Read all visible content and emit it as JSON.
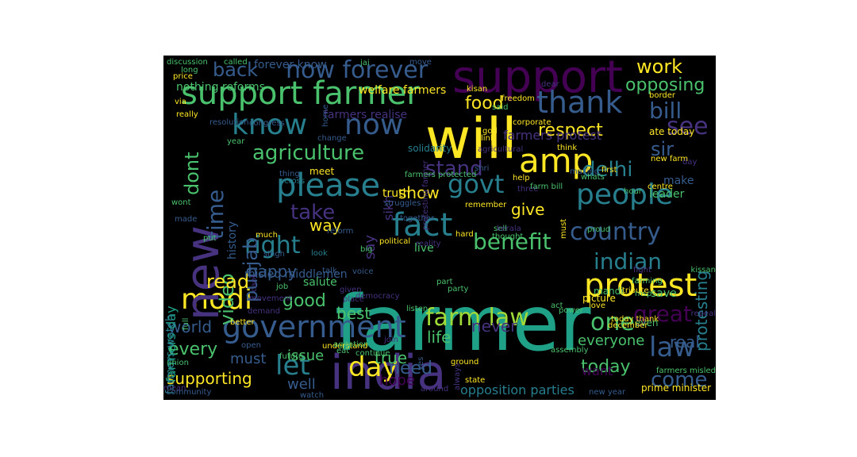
{
  "background": "#000000",
  "palette": [
    "#440154",
    "#46327e",
    "#365c8d",
    "#277f8e",
    "#1fa187",
    "#4ac16d",
    "#a0da39",
    "#fde725"
  ],
  "words": [
    {
      "text": "farmer",
      "color": "#1fa187"
    },
    {
      "text": "india",
      "color": "#46327e"
    },
    {
      "text": "support",
      "color": "#440154"
    },
    {
      "text": "will",
      "color": "#fde725"
    },
    {
      "text": "support farmer",
      "color": "#4ac16d"
    },
    {
      "text": "modi",
      "color": "#fde725"
    },
    {
      "text": "protest",
      "color": "#fde725"
    },
    {
      "text": "government",
      "color": "#365c8d"
    },
    {
      "text": "amp",
      "color": "#fde725"
    },
    {
      "text": "people",
      "color": "#277f8e"
    },
    {
      "text": "fact",
      "color": "#277f8e"
    },
    {
      "text": "know",
      "color": "#277f8e"
    },
    {
      "text": "now",
      "color": "#365c8d"
    },
    {
      "text": "please",
      "color": "#277f8e"
    },
    {
      "text": "new",
      "color": "#46327e"
    },
    {
      "text": "thank",
      "color": "#365c8d"
    },
    {
      "text": "day",
      "color": "#fde725"
    },
    {
      "text": "farm law",
      "color": "#a0da39"
    },
    {
      "text": "now forever",
      "color": "#365c8d"
    },
    {
      "text": "country",
      "color": "#365c8d"
    },
    {
      "text": "govt",
      "color": "#277f8e"
    },
    {
      "text": "let",
      "color": "#277f8e"
    },
    {
      "text": "one",
      "color": "#4ac16d"
    },
    {
      "text": "indian",
      "color": "#277f8e"
    },
    {
      "text": "benefit",
      "color": "#4ac16d"
    },
    {
      "text": "right",
      "color": "#277f8e"
    },
    {
      "text": "bill",
      "color": "#365c8d"
    },
    {
      "text": "agriculture",
      "color": "#4ac16d"
    },
    {
      "text": "delhi",
      "color": "#277f8e"
    },
    {
      "text": "great",
      "color": "#440154"
    },
    {
      "text": "law",
      "color": "#365c8d"
    },
    {
      "text": "time",
      "color": "#365c8d"
    },
    {
      "text": "dont",
      "color": "#4ac16d"
    },
    {
      "text": "work",
      "color": "#fde725"
    },
    {
      "text": "opposing",
      "color": "#4ac16d"
    },
    {
      "text": "back",
      "color": "#365c8d"
    },
    {
      "text": "food",
      "color": "#fde725"
    },
    {
      "text": "see",
      "color": "#46327e"
    },
    {
      "text": "sir",
      "color": "#365c8d"
    },
    {
      "text": "respect",
      "color": "#fde725"
    },
    {
      "text": "take",
      "color": "#46327e"
    },
    {
      "text": "stand",
      "color": "#46327e"
    },
    {
      "text": "punjab",
      "color": "#365c8d"
    },
    {
      "text": "video",
      "color": "#4ac16d"
    },
    {
      "text": "read",
      "color": "#fde725"
    },
    {
      "text": "good",
      "color": "#4ac16d"
    },
    {
      "text": "happy",
      "color": "#365c8d"
    },
    {
      "text": "protesting",
      "color": "#277f8e"
    },
    {
      "text": "show",
      "color": "#fde725"
    },
    {
      "text": "give",
      "color": "#fde725"
    },
    {
      "text": "way",
      "color": "#fde725"
    },
    {
      "text": "world",
      "color": "#365c8d"
    },
    {
      "text": "every",
      "color": "#4ac16d"
    },
    {
      "text": "supporting",
      "color": "#fde725"
    },
    {
      "text": "need",
      "color": "#365c8d"
    },
    {
      "text": "come",
      "color": "#365c8d"
    },
    {
      "text": "today",
      "color": "#4ac16d"
    },
    {
      "text": "real",
      "color": "#365c8d"
    },
    {
      "text": "life",
      "color": "#4ac16d"
    },
    {
      "text": "best",
      "color": "#4ac16d"
    },
    {
      "text": "true",
      "color": "#4ac16d"
    },
    {
      "text": "issue",
      "color": "#4ac16d"
    },
    {
      "text": "must",
      "color": "#365c8d"
    },
    {
      "text": "hope",
      "color": "#440154"
    },
    {
      "text": "well",
      "color": "#365c8d"
    },
    {
      "text": "want",
      "color": "#440154"
    },
    {
      "text": "everyone",
      "color": "#4ac16d"
    },
    {
      "text": "never",
      "color": "#46327e"
    },
    {
      "text": "opposition parties",
      "color": "#277f8e"
    },
    {
      "text": "farmers day",
      "color": "#1fa187"
    },
    {
      "text": "farmers watch",
      "color": "#277f8e"
    },
    {
      "text": "sikh",
      "color": "#46327e"
    },
    {
      "text": "say",
      "color": "#46327e"
    },
    {
      "text": "history",
      "color": "#365c8d"
    },
    {
      "text": "nothing reforms",
      "color": "#4ac16d"
    },
    {
      "text": "welfare farmers",
      "color": "#fde725"
    },
    {
      "text": "forever know",
      "color": "#365c8d"
    },
    {
      "text": "farmers realise",
      "color": "#46327e"
    },
    {
      "text": "farmers protest",
      "color": "#46327e"
    },
    {
      "text": "misled middlemen",
      "color": "#365c8d"
    },
    {
      "text": "salute",
      "color": "#4ac16d"
    },
    {
      "text": "live",
      "color": "#4ac16d"
    },
    {
      "text": "truth",
      "color": "#fde725"
    },
    {
      "text": "save",
      "color": "#4ac16d"
    },
    {
      "text": "leader",
      "color": "#4ac16d"
    },
    {
      "text": "make",
      "color": "#365c8d"
    },
    {
      "text": "even",
      "color": "#4ac16d"
    },
    {
      "text": "prime minister",
      "color": "#fde725"
    },
    {
      "text": "farmers misled",
      "color": "#4ac16d"
    },
    {
      "text": "mandi",
      "color": "#4ac16d"
    },
    {
      "text": "picture",
      "color": "#fde725"
    },
    {
      "text": "ate today",
      "color": "#fde725"
    },
    {
      "text": "solidarity",
      "color": "#277f8e"
    },
    {
      "text": "congress",
      "color": "#365c8d"
    },
    {
      "text": "resolution",
      "color": "#365c8d"
    },
    {
      "text": "change",
      "color": "#365c8d"
    },
    {
      "text": "thing",
      "color": "#365c8d"
    },
    {
      "text": "across",
      "color": "#277f8e"
    },
    {
      "text": "meet",
      "color": "#fde725"
    },
    {
      "text": "farmers protected",
      "color": "#4ac16d"
    },
    {
      "text": "help",
      "color": "#fde725"
    },
    {
      "text": "three",
      "color": "#46327e"
    },
    {
      "text": "farm bill",
      "color": "#4ac16d"
    },
    {
      "text": "struggles",
      "color": "#365c8d"
    },
    {
      "text": "together",
      "color": "#365c8d"
    },
    {
      "text": "remember",
      "color": "#fde725"
    },
    {
      "text": "hard",
      "color": "#fde725"
    },
    {
      "text": "political",
      "color": "#fde725"
    },
    {
      "text": "reality",
      "color": "#46327e"
    },
    {
      "text": "big",
      "color": "#4ac16d"
    },
    {
      "text": "singh",
      "color": "#365c8d"
    },
    {
      "text": "much",
      "color": "#fde725"
    },
    {
      "text": "reform",
      "color": "#365c8d"
    },
    {
      "text": "look",
      "color": "#277f8e"
    },
    {
      "text": "talk",
      "color": "#365c8d"
    },
    {
      "text": "voice",
      "color": "#365c8d"
    },
    {
      "text": "job",
      "color": "#4ac16d"
    },
    {
      "text": "given",
      "color": "#46327e"
    },
    {
      "text": "place",
      "color": "#46327e"
    },
    {
      "text": "part",
      "color": "#4ac16d"
    },
    {
      "text": "party",
      "color": "#4ac16d"
    },
    {
      "text": "movement",
      "color": "#46327e"
    },
    {
      "text": "demand",
      "color": "#46327e"
    },
    {
      "text": "democracy",
      "color": "#46327e"
    },
    {
      "text": "listen",
      "color": "#4ac16d"
    },
    {
      "text": "act",
      "color": "#4ac16d"
    },
    {
      "text": "love",
      "color": "#fde725"
    },
    {
      "text": "power",
      "color": "#4ac16d"
    },
    {
      "text": "better",
      "color": "#fde725"
    },
    {
      "text": "open",
      "color": "#365c8d"
    },
    {
      "text": "understand",
      "color": "#fde725"
    },
    {
      "text": "agitation",
      "color": "#4ac16d"
    },
    {
      "text": "eat",
      "color": "#4ac16d"
    },
    {
      "text": "continue",
      "color": "#4ac16d"
    },
    {
      "text": "future",
      "color": "#4ac16d"
    },
    {
      "text": "join",
      "color": "#46327e"
    },
    {
      "text": "ground",
      "color": "#fde725"
    },
    {
      "text": "state",
      "color": "#fde725"
    },
    {
      "text": "around",
      "color": "#46327e"
    },
    {
      "text": "mean",
      "color": "#46327e"
    },
    {
      "text": "watch",
      "color": "#365c8d"
    },
    {
      "text": "community",
      "color": "#365c8d"
    },
    {
      "text": "union",
      "color": "#4ac16d"
    },
    {
      "text": "new year",
      "color": "#365c8d"
    },
    {
      "text": "assembly",
      "color": "#4ac16d"
    },
    {
      "text": "december",
      "color": "#fde725"
    },
    {
      "text": "today thank",
      "color": "#fde725"
    },
    {
      "text": "repeal",
      "color": "#46327e"
    },
    {
      "text": "kissan",
      "color": "#4ac16d"
    },
    {
      "text": "fight",
      "color": "#46327e"
    },
    {
      "text": "msp",
      "color": "#4ac16d"
    },
    {
      "text": "farming",
      "color": "#4ac16d"
    },
    {
      "text": "tribute",
      "color": "#fde725"
    },
    {
      "text": "proud",
      "color": "#4ac16d"
    },
    {
      "text": "first",
      "color": "#fde725"
    },
    {
      "text": "centre",
      "color": "#fde725"
    },
    {
      "text": "new farm",
      "color": "#fde725"
    },
    {
      "text": "making",
      "color": "#365c8d"
    },
    {
      "text": "whats",
      "color": "#4ac16d"
    },
    {
      "text": "hour",
      "color": "#4ac16d"
    },
    {
      "text": "think",
      "color": "#fde725"
    },
    {
      "text": "dear",
      "color": "#46327e"
    },
    {
      "text": "day",
      "color": "#46327e"
    },
    {
      "text": "border",
      "color": "#fde725"
    },
    {
      "text": "freedom",
      "color": "#fde725"
    },
    {
      "text": "said",
      "color": "#4ac16d"
    },
    {
      "text": "corporate",
      "color": "#fde725"
    },
    {
      "text": "kisan",
      "color": "#fde725"
    },
    {
      "text": "god",
      "color": "#fde725"
    },
    {
      "text": "link",
      "color": "#fde725"
    },
    {
      "text": "agricultural",
      "color": "#46327e"
    },
    {
      "text": "shri",
      "color": "#365c8d"
    },
    {
      "text": "jai",
      "color": "#4ac16d"
    },
    {
      "text": "move",
      "color": "#365c8d"
    },
    {
      "text": "called",
      "color": "#4ac16d"
    },
    {
      "text": "discussion",
      "color": "#4ac16d"
    },
    {
      "text": "long",
      "color": "#4ac16d"
    },
    {
      "text": "price",
      "color": "#fde725"
    },
    {
      "text": "via",
      "color": "#fde725"
    },
    {
      "text": "really",
      "color": "#fde725"
    },
    {
      "text": "home",
      "color": "#365c8d"
    },
    {
      "text": "year",
      "color": "#4ac16d"
    },
    {
      "text": "wont",
      "color": "#4ac16d"
    },
    {
      "text": "made",
      "color": "#365c8d"
    },
    {
      "text": "put",
      "color": "#4ac16d"
    },
    {
      "text": "full",
      "color": "#4ac16d"
    },
    {
      "text": "sell",
      "color": "#4ac16d"
    },
    {
      "text": "thought",
      "color": "#4ac16d"
    },
    {
      "text": "must",
      "color": "#fde725"
    },
    {
      "text": "cant",
      "color": "#46327e"
    },
    {
      "text": "yes",
      "color": "#365c8d"
    },
    {
      "text": "always",
      "color": "#46327e"
    },
    {
      "text": "protesting farmer",
      "color": "#46327e"
    },
    {
      "text": "kerala",
      "color": "#46327e"
    },
    {
      "text": "bjp",
      "color": "#46327e"
    },
    {
      "text": "nation",
      "color": "#46327e"
    },
    {
      "text": "keep",
      "color": "#46327e"
    }
  ]
}
